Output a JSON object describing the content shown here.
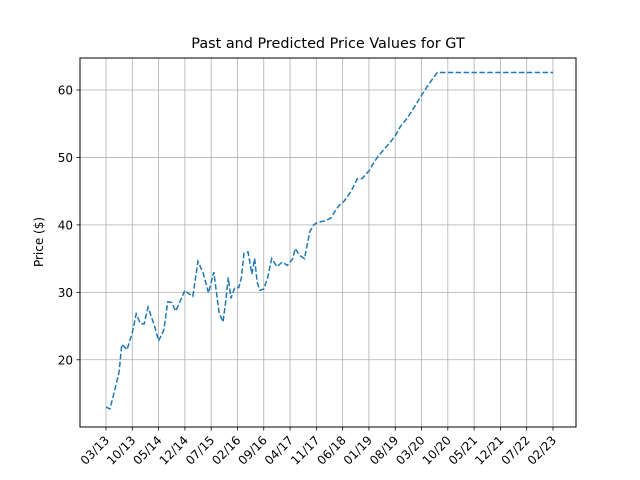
{
  "chart_data": {
    "type": "line",
    "title": "Past and Predicted Price Values for GT",
    "xlabel": "",
    "ylabel": "Price ($)",
    "ylim": [
      10,
      65
    ],
    "yticks": [
      20,
      30,
      40,
      50,
      60
    ],
    "grid": true,
    "xticks": [
      "03/13",
      "10/13",
      "05/14",
      "12/14",
      "07/15",
      "02/16",
      "09/16",
      "04/17",
      "11/17",
      "06/18",
      "01/19",
      "08/19",
      "03/20",
      "10/20",
      "05/21",
      "12/21",
      "07/22",
      "02/23"
    ],
    "series": [
      {
        "color": "#1f77b4",
        "style": "dashed",
        "x": [
          0,
          0.15,
          0.3,
          0.5,
          0.6,
          0.8,
          1.0,
          1.15,
          1.3,
          1.45,
          1.6,
          1.85,
          2.0,
          2.2,
          2.35,
          2.5,
          2.65,
          2.8,
          3.0,
          3.15,
          3.3,
          3.5,
          3.7,
          3.9,
          4.1,
          4.3,
          4.45,
          4.55,
          4.65,
          4.75,
          4.9,
          5.05,
          5.15,
          5.25,
          5.4,
          5.55,
          5.65,
          5.75,
          5.85,
          6.0,
          6.15,
          6.3,
          6.5,
          6.7,
          6.9,
          7.0,
          7.1,
          7.2,
          7.35,
          7.55,
          7.75,
          7.9,
          8.05,
          8.2,
          8.35,
          8.55,
          8.75,
          8.9,
          9.05,
          9.2,
          9.35,
          9.55,
          9.75,
          10.0,
          10.15,
          10.35,
          10.6,
          10.8,
          11.0,
          11.2,
          11.45,
          11.7,
          12.0,
          12.3,
          12.6,
          12.9,
          13.2,
          13.5,
          13.8,
          14.1,
          14.4,
          14.7,
          15.0,
          15.3,
          15.6,
          15.9,
          16.2,
          16.5,
          16.8,
          17.0
        ],
        "values": [
          13.0,
          12.7,
          15.0,
          18.2,
          22.3,
          21.5,
          24.0,
          26.8,
          25.4,
          25.3,
          27.8,
          25.0,
          22.8,
          24.4,
          28.6,
          28.5,
          27.2,
          28.5,
          30.3,
          29.8,
          29.4,
          34.6,
          32.8,
          29.9,
          33.0,
          27.0,
          25.6,
          28.5,
          32.2,
          29.1,
          30.7,
          30.7,
          32.2,
          35.8,
          36.0,
          32.7,
          35.0,
          31.5,
          30.3,
          30.5,
          32.2,
          35.0,
          33.8,
          34.5,
          34.0,
          34.5,
          35.0,
          36.5,
          35.5,
          35.0,
          39.0,
          40.0,
          40.4,
          40.5,
          40.6,
          41.0,
          42.3,
          43.0,
          43.5,
          44.3,
          45.2,
          46.8,
          46.9,
          48.0,
          49.0,
          50.2,
          51.3,
          52.2,
          53.2,
          54.6,
          55.8,
          57.3,
          59.2,
          61.0,
          62.6,
          62.6,
          62.6,
          62.6,
          62.6,
          62.6,
          62.6,
          62.6,
          62.6,
          62.6,
          62.6,
          62.6,
          62.6,
          62.6,
          62.6,
          62.6
        ]
      }
    ]
  }
}
